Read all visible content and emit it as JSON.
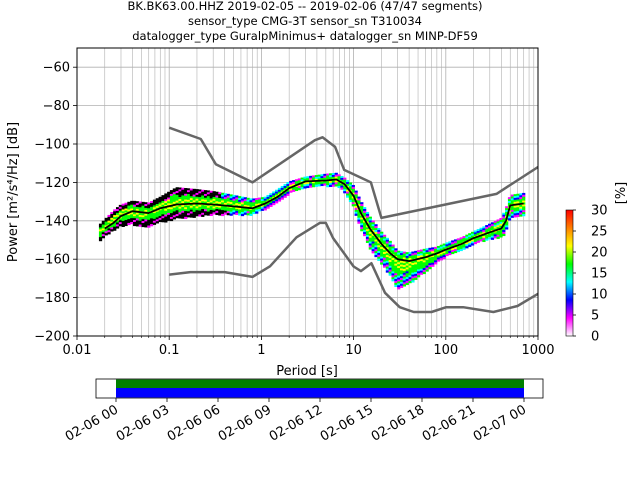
{
  "chart_data": {
    "type": "heatmap",
    "title_lines": [
      "BK.BK63.00.HHZ   2019-02-05 -- 2019-02-06  (47/47 segments)",
      "sensor_type CMG-3T sensor_sn T310034",
      "datalogger_type GuralpMinimus+ datalogger_sn MINP-DF59"
    ],
    "xlabel": "Period [s]",
    "ylabel": "Power [m²/s⁴/Hz] [dB]",
    "x_scale": "log",
    "xlim": [
      0.01,
      1000
    ],
    "ylim": [
      -200,
      -50
    ],
    "x_ticks": [
      {
        "v": 0.01,
        "label": "0.01"
      },
      {
        "v": 0.1,
        "label": "0.1"
      },
      {
        "v": 1,
        "label": "1"
      },
      {
        "v": 10,
        "label": "10"
      },
      {
        "v": 100,
        "label": "100"
      },
      {
        "v": 1000,
        "label": "1000"
      }
    ],
    "y_ticks": [
      {
        "v": -60,
        "label": "−60"
      },
      {
        "v": -80,
        "label": "−80"
      },
      {
        "v": -100,
        "label": "−100"
      },
      {
        "v": -120,
        "label": "−120"
      },
      {
        "v": -140,
        "label": "−140"
      },
      {
        "v": -160,
        "label": "−160"
      },
      {
        "v": -180,
        "label": "−180"
      },
      {
        "v": -200,
        "label": "−200"
      }
    ],
    "grid": true,
    "colorbar": {
      "label": "[%]",
      "range": [
        0,
        30
      ],
      "ticks": [
        {
          "v": 0,
          "label": "0"
        },
        {
          "v": 5,
          "label": "5"
        },
        {
          "v": 10,
          "label": "10"
        },
        {
          "v": 15,
          "label": "15"
        },
        {
          "v": 20,
          "label": "20"
        },
        {
          "v": 25,
          "label": "25"
        },
        {
          "v": 30,
          "label": "30"
        }
      ],
      "colors": [
        "#ffffff",
        "#ff00ff",
        "#0000ff",
        "#00ffff",
        "#00ff00",
        "#ffff00",
        "#ff8000",
        "#ff0000"
      ]
    },
    "series": [
      {
        "name": "",
        "role": "high-noise-model",
        "color": "#666666",
        "points": [
          [
            0.1,
            -91.5
          ],
          [
            0.22,
            -97.4
          ],
          [
            0.32,
            -110.5
          ],
          [
            0.8,
            -120
          ],
          [
            3.8,
            -98
          ],
          [
            4.6,
            -96.5
          ],
          [
            6.3,
            -101.5
          ],
          [
            7.9,
            -113.5
          ],
          [
            15.4,
            -120
          ],
          [
            20,
            -138.5
          ],
          [
            354.8,
            -126
          ],
          [
            1000,
            -112
          ]
        ]
      },
      {
        "name": "",
        "role": "low-noise-model",
        "color": "#666666",
        "points": [
          [
            0.1,
            -168
          ],
          [
            0.17,
            -166.7
          ],
          [
            0.4,
            -166.7
          ],
          [
            0.8,
            -169.2
          ],
          [
            1.24,
            -163.7
          ],
          [
            2.4,
            -148.6
          ],
          [
            4.3,
            -141.1
          ],
          [
            5,
            -141.1
          ],
          [
            6,
            -149
          ],
          [
            10,
            -163.8
          ],
          [
            12,
            -166.2
          ],
          [
            15.6,
            -162.1
          ],
          [
            21.9,
            -177.5
          ],
          [
            31.6,
            -185
          ],
          [
            45,
            -187.5
          ],
          [
            70,
            -187.5
          ],
          [
            101,
            -185
          ],
          [
            154,
            -185
          ],
          [
            328,
            -187.5
          ],
          [
            600,
            -184.4
          ],
          [
            1000,
            -178
          ]
        ]
      },
      {
        "name": "",
        "role": "mode",
        "color": "#000000",
        "points": [
          [
            0.02,
            -144
          ],
          [
            0.025,
            -141
          ],
          [
            0.03,
            -137.5
          ],
          [
            0.04,
            -135
          ],
          [
            0.06,
            -136
          ],
          [
            0.08,
            -133.5
          ],
          [
            0.12,
            -131.5
          ],
          [
            0.2,
            -131
          ],
          [
            0.3,
            -131.5
          ],
          [
            0.5,
            -132.5
          ],
          [
            0.8,
            -133.5
          ],
          [
            1.1,
            -131
          ],
          [
            1.5,
            -127.5
          ],
          [
            2,
            -123
          ],
          [
            3,
            -119.5
          ],
          [
            5,
            -119
          ],
          [
            6.5,
            -118.5
          ],
          [
            8,
            -121
          ],
          [
            10,
            -127
          ],
          [
            12,
            -136
          ],
          [
            15,
            -144
          ],
          [
            20,
            -152
          ],
          [
            25,
            -157
          ],
          [
            30,
            -160
          ],
          [
            40,
            -161
          ],
          [
            60,
            -159
          ],
          [
            80,
            -157
          ],
          [
            100,
            -155
          ],
          [
            150,
            -152
          ],
          [
            200,
            -149
          ],
          [
            300,
            -146
          ],
          [
            400,
            -144
          ],
          [
            450,
            -140
          ],
          [
            500,
            -132
          ],
          [
            700,
            -131
          ]
        ]
      }
    ],
    "heatmap_band": {
      "points": [
        [
          0.018,
          -145,
          3,
          5
        ],
        [
          0.025,
          -140,
          5,
          5
        ],
        [
          0.03,
          -137,
          5,
          6
        ],
        [
          0.04,
          -135,
          5,
          7
        ],
        [
          0.06,
          -136,
          5,
          7
        ],
        [
          0.08,
          -133,
          5,
          8
        ],
        [
          0.12,
          -131,
          8,
          8
        ],
        [
          0.2,
          -131,
          7,
          7
        ],
        [
          0.3,
          -131,
          6,
          6
        ],
        [
          0.5,
          -132,
          5,
          5
        ],
        [
          0.8,
          -133,
          4,
          4
        ],
        [
          1.1,
          -131,
          3,
          3
        ],
        [
          1.5,
          -127,
          3,
          3
        ],
        [
          2,
          -123,
          3,
          3
        ],
        [
          3,
          -119.5,
          2,
          3
        ],
        [
          5,
          -119,
          3,
          3
        ],
        [
          6.5,
          -118.5,
          3,
          3
        ],
        [
          8,
          -121,
          3,
          4
        ],
        [
          10,
          -127,
          5,
          6
        ],
        [
          12,
          -136,
          6,
          8
        ],
        [
          15,
          -144,
          6,
          10
        ],
        [
          20,
          -152,
          6,
          10
        ],
        [
          25,
          -157,
          6,
          12
        ],
        [
          30,
          -160,
          4,
          16
        ],
        [
          40,
          -161,
          4,
          12
        ],
        [
          60,
          -159,
          4,
          8
        ],
        [
          80,
          -157,
          3,
          5
        ],
        [
          100,
          -155,
          3,
          4
        ],
        [
          150,
          -152,
          3,
          3
        ],
        [
          200,
          -149,
          3,
          3
        ],
        [
          300,
          -146,
          4,
          4
        ],
        [
          400,
          -144,
          5,
          5
        ],
        [
          450,
          -140,
          6,
          6
        ],
        [
          500,
          -132,
          5,
          6
        ],
        [
          700,
          -131,
          5,
          6
        ]
      ],
      "edge_colors": [
        "#ff00ff",
        "#0000ff",
        "#00ffff",
        "#00ff00"
      ],
      "core_colors": [
        "#00ff00",
        "#ffff00",
        "#ff8000",
        "#ff0000"
      ]
    },
    "availability": {
      "tick_labels": [
        "02-06 00",
        "02-06 03",
        "02-06 06",
        "02-06 09",
        "02-06 12",
        "02-06 15",
        "02-06 18",
        "02-06 21",
        "02-07 00"
      ],
      "coverage_color": "#008000",
      "data_color": "#0000ff"
    }
  }
}
